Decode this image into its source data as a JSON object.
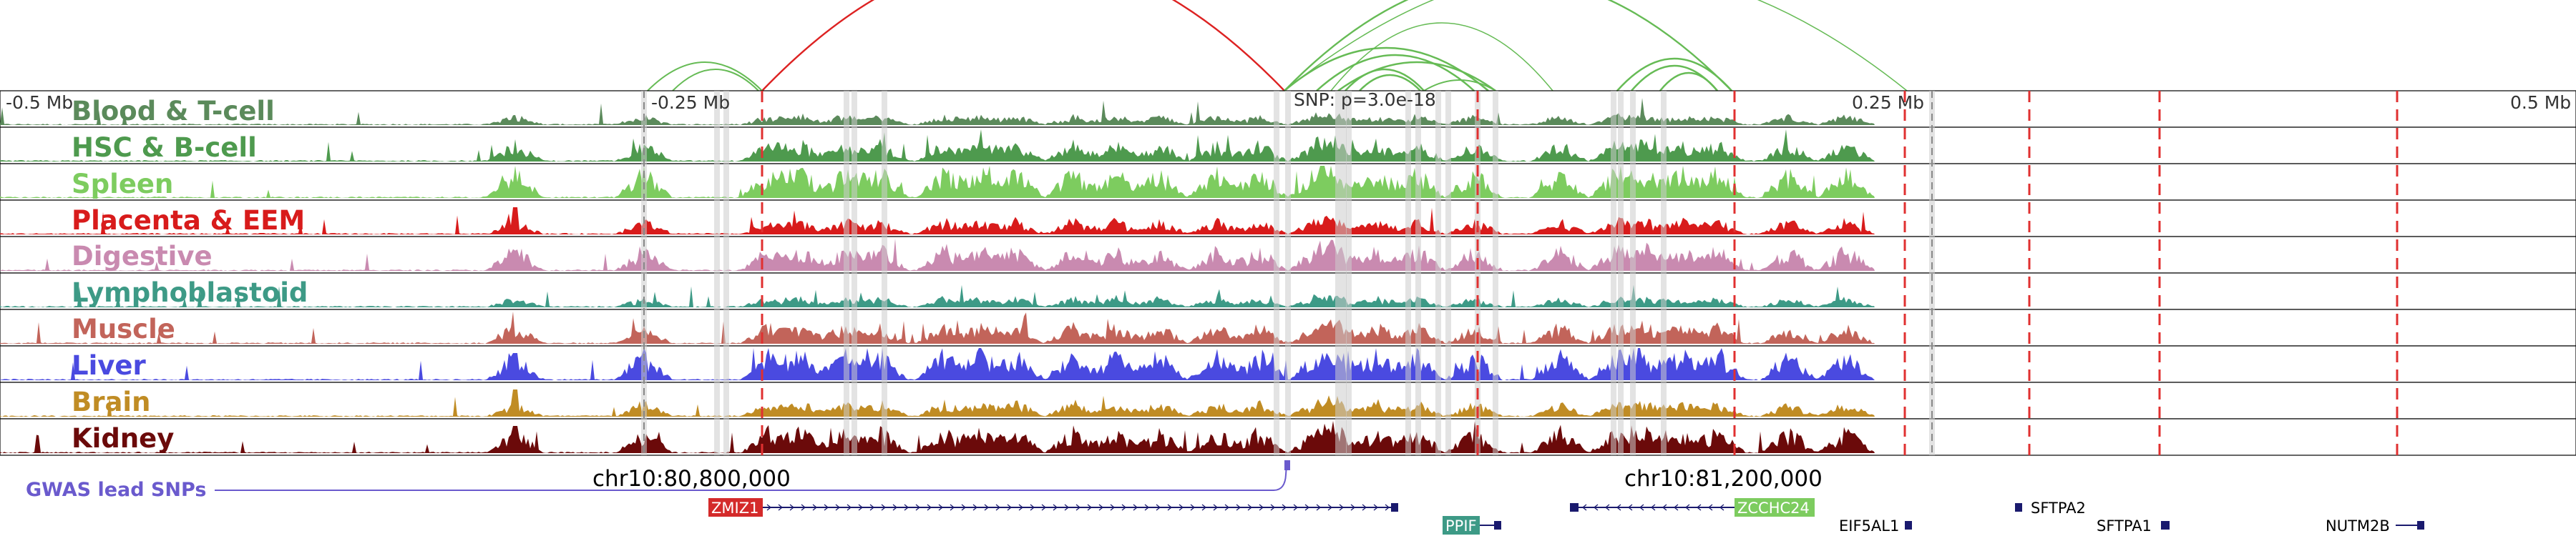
{
  "axis": {
    "ticks": [
      "-0.5 Mb",
      "-0.25 Mb",
      "SNP: p=3.0e-18",
      "0.25 Mb",
      "0.5 Mb"
    ]
  },
  "tracks": [
    {
      "name": "Blood & T-cell",
      "color": "#5b8a5b"
    },
    {
      "name": "HSC & B-cell",
      "color": "#4e9a4e"
    },
    {
      "name": "Spleen",
      "color": "#7dcc5f"
    },
    {
      "name": "Placenta & EEM",
      "color": "#d81b1b"
    },
    {
      "name": "Digestive",
      "color": "#c98ab0"
    },
    {
      "name": "Lymphoblastoid",
      "color": "#3d9a86"
    },
    {
      "name": "Muscle",
      "color": "#c2645a"
    },
    {
      "name": "Liver",
      "color": "#4a4ae0"
    },
    {
      "name": "Brain",
      "color": "#c08c24"
    },
    {
      "name": "Kidney",
      "color": "#6b0a0a"
    }
  ],
  "gwas": {
    "label": "GWAS lead SNPs",
    "color": "#6a5acd"
  },
  "coordinates": {
    "left": "chr10:80,800,000",
    "right": "chr10:81,200,000"
  },
  "genes": [
    {
      "name": "ZMIZ1",
      "style": "box",
      "color": "#d42a2a"
    },
    {
      "name": "PPIF",
      "style": "box",
      "color": "#3d9a86"
    },
    {
      "name": "ZCCHC24",
      "style": "box",
      "color": "#7dcc5f"
    },
    {
      "name": "EIF5AL1",
      "style": "plain",
      "color": "#000000"
    },
    {
      "name": "SFTPA2",
      "style": "plain",
      "color": "#000000"
    },
    {
      "name": "SFTPA1",
      "style": "plain",
      "color": "#000000"
    },
    {
      "name": "NUTM2B",
      "style": "plain",
      "color": "#000000"
    }
  ],
  "colors": {
    "red_marker": "#e03030",
    "gray_marker": "#888888",
    "arc_green": "#66bb55",
    "arc_red": "#dd2222",
    "track_border": "#000000"
  }
}
